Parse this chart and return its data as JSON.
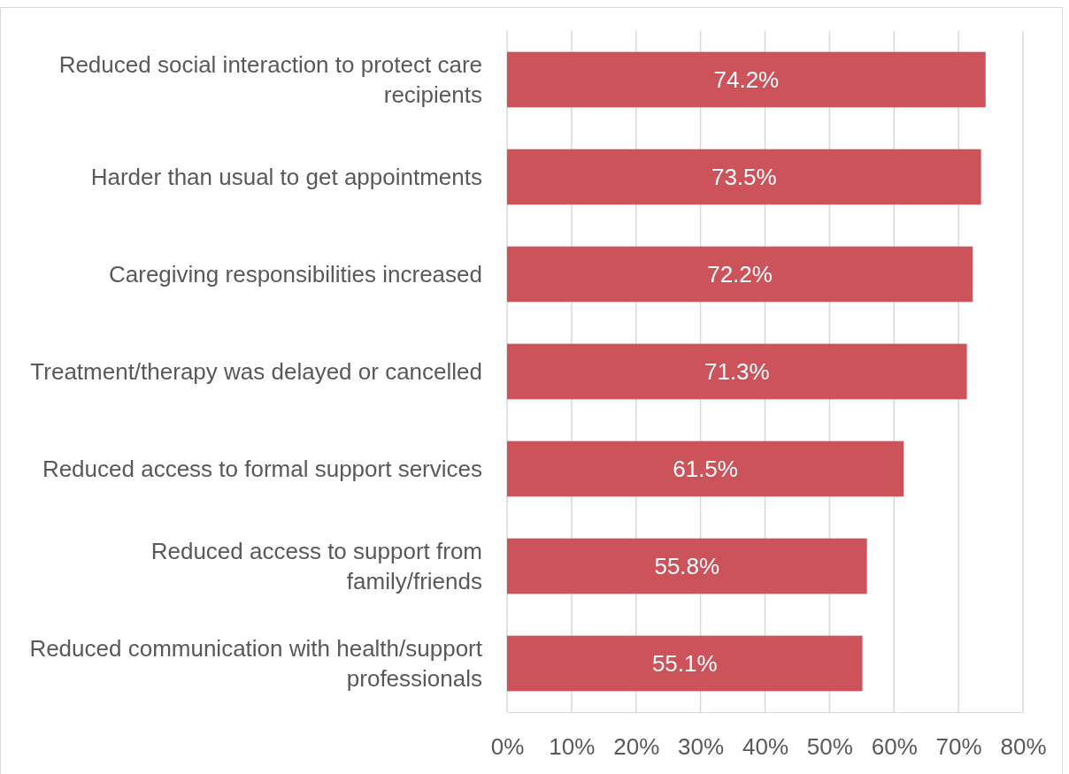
{
  "chart_data": {
    "type": "bar",
    "orientation": "horizontal",
    "categories": [
      "Reduced social interaction to protect care recipients",
      "Harder than usual to get appointments",
      "Caregiving responsibilities increased",
      "Treatment/therapy was delayed or cancelled",
      "Reduced access to formal support services",
      "Reduced access to support from family/friends",
      "Reduced communication with health/support professionals"
    ],
    "values": [
      74.2,
      73.5,
      72.2,
      71.3,
      61.5,
      55.8,
      55.1
    ],
    "value_labels": [
      "74.2%",
      "73.5%",
      "72.2%",
      "71.3%",
      "61.5%",
      "55.8%",
      "55.1%"
    ],
    "color": "#cd535a",
    "xlim": [
      0,
      80
    ],
    "xticks": [
      {
        "value": 0,
        "label": "0%"
      },
      {
        "value": 10,
        "label": "10%"
      },
      {
        "value": 20,
        "label": "20%"
      },
      {
        "value": 30,
        "label": "30%"
      },
      {
        "value": 40,
        "label": "40%"
      },
      {
        "value": 50,
        "label": "50%"
      },
      {
        "value": 60,
        "label": "60%"
      },
      {
        "value": 70,
        "label": "70%"
      },
      {
        "value": 80,
        "label": "80%"
      }
    ],
    "grid": "x"
  }
}
